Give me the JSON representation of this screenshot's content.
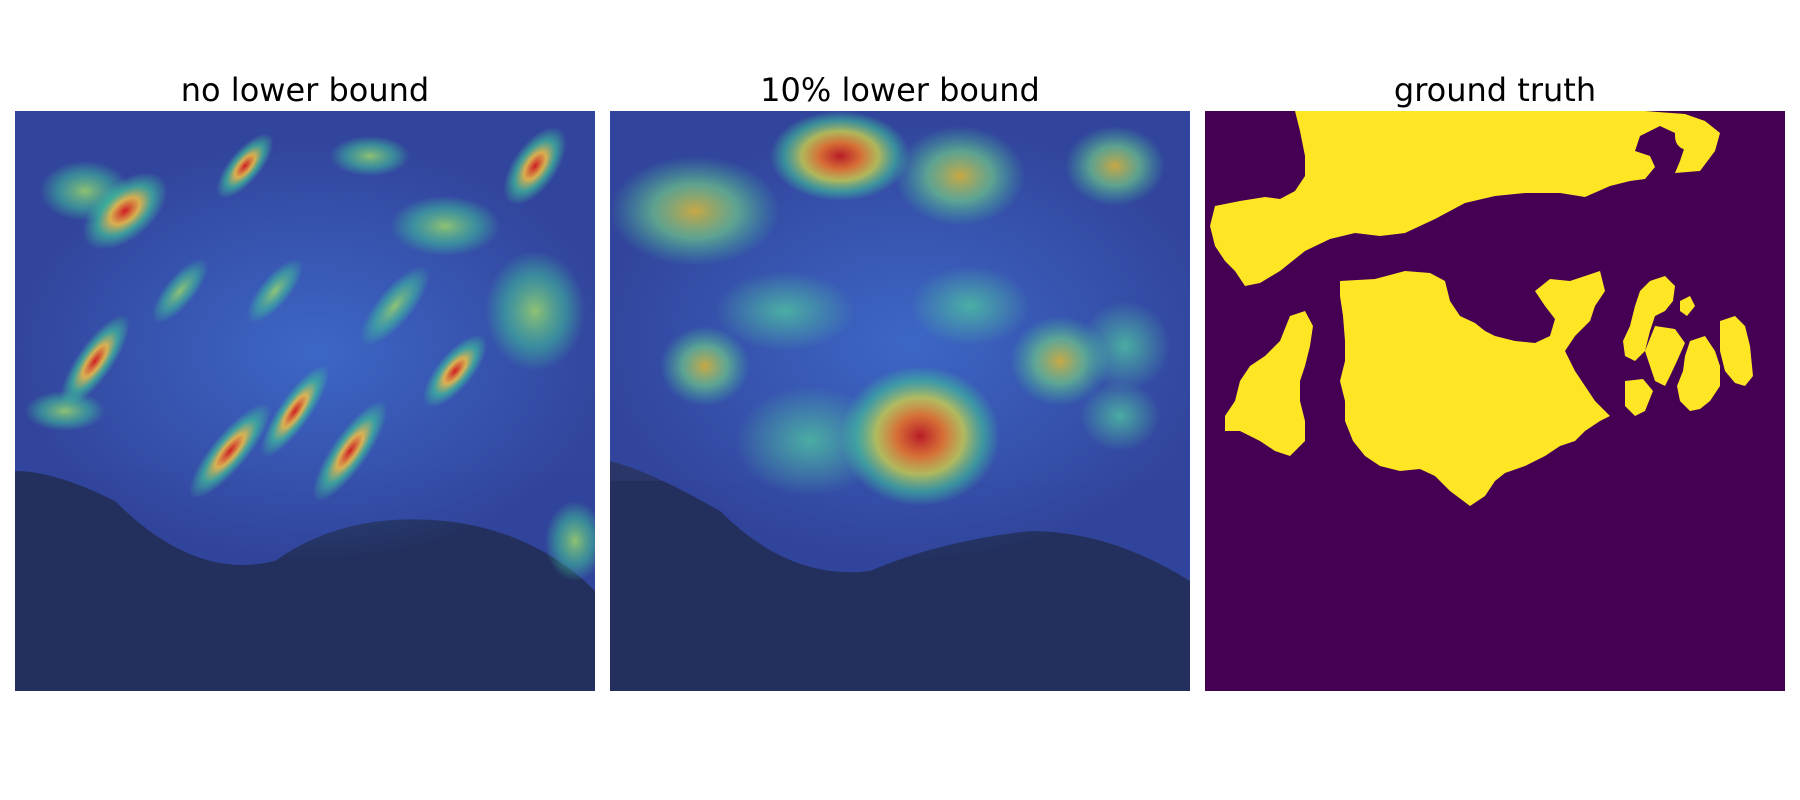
{
  "figure": {
    "panels": [
      {
        "title": "no lower bound",
        "content": "heatmap overlay on aerial imagery"
      },
      {
        "title": "10% lower bound",
        "content": "heatmap overlay on aerial imagery"
      },
      {
        "title": "ground truth",
        "content": "binary segmentation mask"
      }
    ]
  },
  "colors": {
    "background": "#ffffff",
    "mask_background": "#440154",
    "mask_foreground": "#fde725",
    "heat_low": "#2a3a8c",
    "heat_mid": "#3fbf9a",
    "heat_high": "#d7191c"
  }
}
